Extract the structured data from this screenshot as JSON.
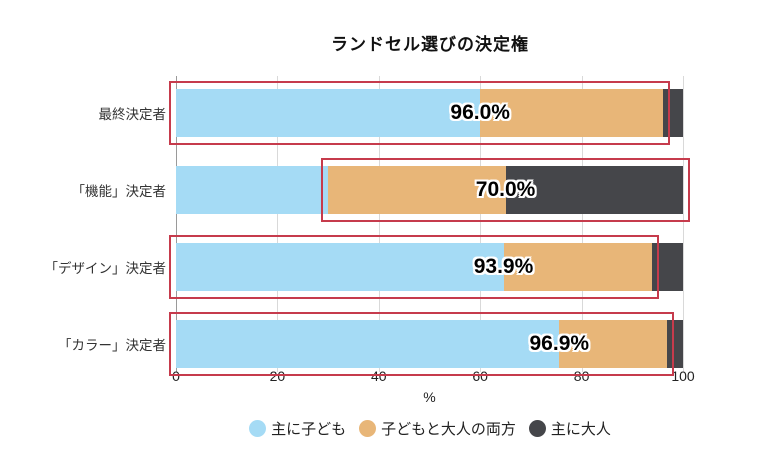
{
  "chart_data": {
    "type": "bar",
    "orientation": "horizontal",
    "stacked": true,
    "title": "ランドセル選びの決定権",
    "categories": [
      "最終決定者",
      "「機能」決定者",
      "「デザイン」決定者",
      "「カラー」決定者"
    ],
    "series": [
      {
        "name": "主に子ども",
        "color": "#a5dbf5",
        "values": [
          60.0,
          30.0,
          64.6,
          75.6
        ]
      },
      {
        "name": "子どもと大人の両方",
        "color": "#e8b678",
        "values": [
          36.0,
          35.0,
          29.3,
          21.3
        ]
      },
      {
        "name": "主に大人",
        "color": "#45464a",
        "values": [
          4.0,
          35.0,
          6.1,
          3.1
        ]
      }
    ],
    "xlabel": "%",
    "xlim": [
      0,
      100
    ],
    "xticks": [
      0,
      20,
      40,
      60,
      80,
      100
    ],
    "grid": true,
    "legend_position": "bottom",
    "annotations": [
      {
        "category": "最終決定者",
        "label": "96.0%",
        "label_x": 60.0,
        "highlight_from": 0,
        "highlight_to": 96.0
      },
      {
        "category": "「機能」決定者",
        "label": "70.0%",
        "label_x": 65.0,
        "highlight_from": 30.0,
        "highlight_to": 100
      },
      {
        "category": "「デザイン」決定者",
        "label": "93.9%",
        "label_x": 64.6,
        "highlight_from": 0,
        "highlight_to": 93.9
      },
      {
        "category": "「カラー」決定者",
        "label": "96.9%",
        "label_x": 75.6,
        "highlight_from": 0,
        "highlight_to": 96.9
      }
    ],
    "highlight_color": "#c63b4c",
    "axis_color": "#9a9a9a",
    "grid_color": "#d9d9d9"
  }
}
